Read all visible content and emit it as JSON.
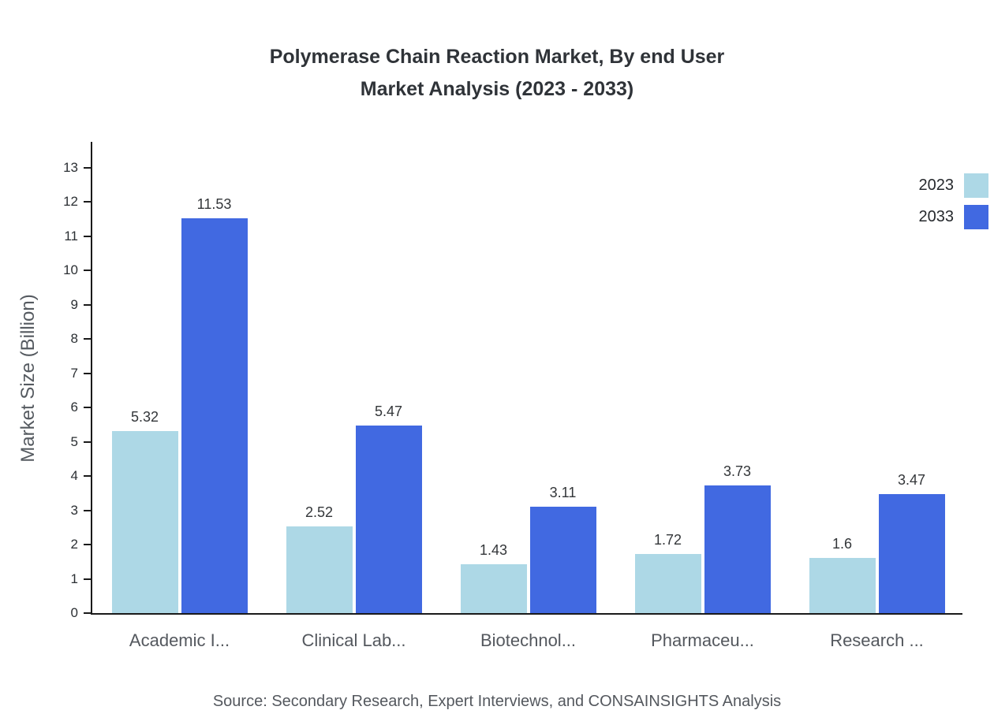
{
  "title": {
    "line1": "Polymerase Chain Reaction Market, By end User",
    "line2": "Market Analysis (2023 - 2033)"
  },
  "chart_data": {
    "type": "bar",
    "categories": [
      "Academic I...",
      "Clinical Lab...",
      "Biotechnol...",
      "Pharmaceu...",
      "Research ..."
    ],
    "series": [
      {
        "name": "2023",
        "color": "#ADD8E6",
        "values": [
          5.32,
          2.52,
          1.43,
          1.72,
          1.6
        ]
      },
      {
        "name": "2033",
        "color": "#4169E1",
        "values": [
          11.53,
          5.47,
          3.11,
          3.73,
          3.47
        ]
      }
    ],
    "xlabel": "",
    "ylabel": "Market Size (Billion)",
    "yticks": [
      0,
      1,
      2,
      3,
      4,
      5,
      6,
      7,
      8,
      9,
      10,
      11,
      12,
      13
    ],
    "ylim": [
      0,
      13.8
    ],
    "grid": false,
    "legend_position": "top-right"
  },
  "source": "Source: Secondary Research, Expert Interviews, and CONSAINSIGHTS Analysis"
}
